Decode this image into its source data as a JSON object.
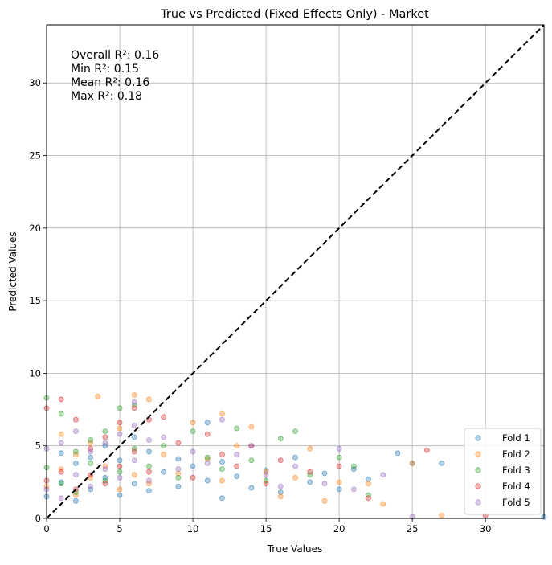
{
  "chart_data": {
    "type": "scatter",
    "title": "True vs Predicted (Fixed Effects Only) - Market",
    "xlabel": "True Values",
    "ylabel": "Predicted Values",
    "xlim": [
      0,
      34
    ],
    "ylim": [
      0,
      34
    ],
    "x_ticks": [
      "0",
      "5",
      "10",
      "15",
      "20",
      "25",
      "30"
    ],
    "y_ticks": [
      "0",
      "5",
      "10",
      "15",
      "20",
      "25",
      "30"
    ],
    "grid": true,
    "legend_position": "bottom-right",
    "annotation": [
      "Overall R²: 0.16",
      "Min R²: 0.15",
      "Mean R²: 0.16",
      "Max R²: 0.18"
    ],
    "reference_line": {
      "style": "dashed",
      "color": "#000000",
      "from": [
        0,
        0
      ],
      "to": [
        34,
        34
      ]
    },
    "series": [
      {
        "name": "Fold 1",
        "color": "#1f77b4",
        "x": [
          0,
          1,
          1,
          2,
          2,
          3,
          3,
          4,
          4,
          5,
          5,
          6,
          6,
          7,
          7,
          8,
          9,
          9,
          10,
          11,
          11,
          12,
          12,
          13,
          14,
          15,
          16,
          17,
          18,
          19,
          20,
          21,
          22,
          24,
          25,
          27,
          34
        ],
        "y": [
          1.5,
          2.5,
          4.5,
          1.2,
          3.8,
          2.0,
          4.2,
          2.8,
          5.0,
          1.6,
          4.0,
          2.4,
          5.6,
          1.9,
          4.6,
          3.2,
          2.2,
          4.1,
          3.6,
          2.6,
          6.6,
          1.4,
          3.9,
          2.9,
          2.1,
          3.3,
          1.8,
          4.2,
          2.5,
          3.1,
          2.0,
          3.4,
          2.7,
          4.5,
          3.8,
          3.8,
          0.1
        ]
      },
      {
        "name": "Fold 2",
        "color": "#ff7f0e",
        "x": [
          0,
          1,
          1,
          2,
          2,
          3,
          3,
          3.5,
          4,
          5,
          5,
          6,
          6,
          7,
          7,
          8,
          9,
          10,
          11,
          12,
          12,
          13,
          14,
          15,
          16,
          17,
          18,
          19,
          20,
          22,
          23,
          25,
          27
        ],
        "y": [
          2.2,
          3.4,
          5.8,
          1.6,
          4.4,
          2.8,
          5.2,
          8.4,
          3.6,
          2.0,
          6.2,
          3.0,
          8.5,
          2.4,
          8.2,
          4.4,
          3.1,
          6.6,
          4.1,
          7.2,
          2.6,
          5.0,
          6.3,
          3.2,
          1.5,
          2.8,
          4.8,
          1.2,
          2.5,
          2.4,
          1.0,
          3.8,
          0.2
        ]
      },
      {
        "name": "Fold 3",
        "color": "#2ca02c",
        "x": [
          0,
          0,
          1,
          1,
          2,
          2,
          3,
          3,
          4,
          4,
          5,
          5,
          6,
          6,
          7,
          8,
          9,
          10,
          11,
          12,
          13,
          14,
          15,
          16,
          17,
          18,
          20,
          21,
          22
        ],
        "y": [
          8.3,
          3.5,
          7.2,
          2.4,
          4.6,
          1.8,
          3.8,
          5.4,
          6.0,
          2.6,
          7.6,
          3.2,
          4.8,
          7.8,
          3.6,
          5.0,
          2.8,
          6.0,
          4.2,
          3.4,
          6.2,
          4.0,
          2.6,
          5.5,
          6.0,
          3.0,
          4.2,
          3.6,
          1.6
        ]
      },
      {
        "name": "Fold 4",
        "color": "#d62728",
        "x": [
          0,
          0,
          1,
          1,
          2,
          2,
          3,
          3,
          4,
          4,
          5,
          5,
          6,
          6,
          7,
          7,
          8,
          9,
          10,
          11,
          12,
          13,
          14,
          15,
          16,
          18,
          20,
          22,
          26,
          30
        ],
        "y": [
          7.6,
          2.6,
          8.2,
          3.2,
          6.8,
          2.0,
          4.8,
          3.0,
          5.6,
          2.4,
          6.6,
          3.6,
          4.6,
          7.6,
          3.2,
          6.8,
          7.0,
          5.2,
          2.8,
          5.8,
          4.4,
          3.6,
          5.0,
          2.4,
          4.0,
          3.2,
          3.6,
          1.4,
          4.7,
          0.2
        ]
      },
      {
        "name": "Fold 5",
        "color": "#9467bd",
        "x": [
          0,
          0,
          1,
          1,
          2,
          2,
          3,
          3,
          4,
          4,
          5,
          5,
          6,
          6,
          6,
          7,
          7,
          8,
          9,
          10,
          11,
          12,
          13,
          14,
          15,
          16,
          17,
          19,
          20,
          21,
          23,
          25
        ],
        "y": [
          2.0,
          4.8,
          1.4,
          5.2,
          3.0,
          6.0,
          2.2,
          4.6,
          3.4,
          5.2,
          2.8,
          5.8,
          8.0,
          4.0,
          6.4,
          2.6,
          5.4,
          5.6,
          3.4,
          4.6,
          3.8,
          6.8,
          4.4,
          5.0,
          3.0,
          2.2,
          3.6,
          2.4,
          4.8,
          2.0,
          3.0,
          0.1
        ]
      }
    ]
  }
}
